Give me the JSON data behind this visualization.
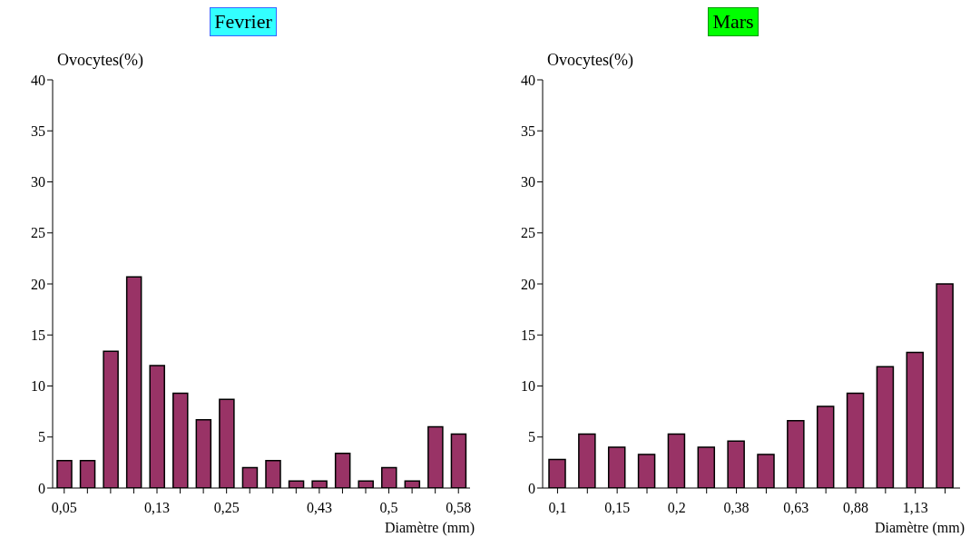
{
  "chart_data": [
    {
      "type": "bar",
      "title": "Fevrier",
      "xlabel": "Diamètre (mm)",
      "ylabel": "Ovocytes(%)",
      "categories": [
        "0,05",
        null,
        null,
        null,
        "0,13",
        null,
        null,
        "0,25",
        null,
        null,
        null,
        "0,43",
        null,
        null,
        "0,5",
        null,
        null,
        "0,58"
      ],
      "values": [
        2.7,
        2.7,
        13.4,
        20.7,
        12,
        9.3,
        6.7,
        8.7,
        2,
        2.7,
        0.7,
        0.7,
        3.4,
        0.7,
        2,
        0.7,
        6,
        5.3
      ],
      "color": "#993366",
      "ylim": [
        0,
        40
      ],
      "yticks": [
        0,
        5,
        10,
        15,
        20,
        25,
        30,
        35,
        40
      ],
      "grid": false,
      "legend": false
    },
    {
      "type": "bar",
      "title": "Mars",
      "xlabel": "Diamètre (mm)",
      "ylabel": "Ovocytes(%)",
      "categories": [
        "0,1",
        null,
        "0,15",
        null,
        "0,2",
        null,
        "0,38",
        null,
        "0,63",
        null,
        "0,88",
        null,
        "1,13",
        null
      ],
      "values": [
        2.8,
        5.3,
        4,
        3.3,
        5.3,
        4,
        4.6,
        3.3,
        6.6,
        8,
        9.3,
        11.9,
        13.3,
        20
      ],
      "color": "#993366",
      "ylim": [
        0,
        40
      ],
      "yticks": [
        0,
        5,
        10,
        15,
        20,
        25,
        30,
        35,
        40
      ],
      "grid": false,
      "legend": false
    }
  ]
}
